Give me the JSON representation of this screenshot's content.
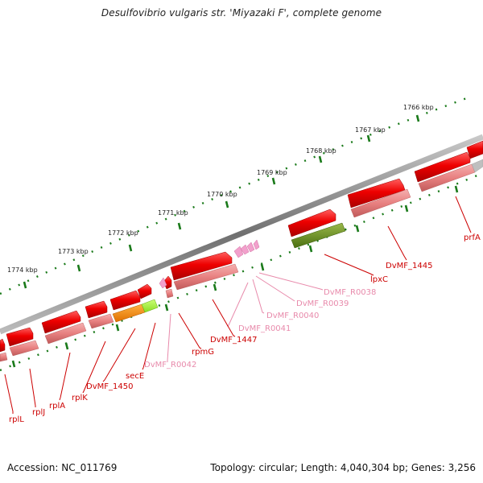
{
  "title": "Desulfovibrio vulgaris str. 'Miyazaki F', complete genome",
  "footer": {
    "accession": "Accession: NC_011769",
    "summary": "Topology: circular; Length: 4,040,304 bp; Genes: 3,256"
  },
  "scale_labels": [
    "1766 kbp",
    "1767 kbp",
    "1768 kbp",
    "1769 kbp",
    "1770 kbp",
    "1771 kbp",
    "1772 kbp",
    "1773 kbp",
    "1774 kbp"
  ],
  "gene_labels": [
    {
      "text": "prfA",
      "color": "#cc0000"
    },
    {
      "text": "DvMF_1445",
      "color": "#cc0000"
    },
    {
      "text": "lpxC",
      "color": "#cc0000"
    },
    {
      "text": "DvMF_R0038",
      "color": "#e88aab"
    },
    {
      "text": "DvMF_R0039",
      "color": "#e88aab"
    },
    {
      "text": "DvMF_R0040",
      "color": "#e88aab"
    },
    {
      "text": "DvMF_R0041",
      "color": "#e88aab"
    },
    {
      "text": "DvMF_1447",
      "color": "#cc0000"
    },
    {
      "text": "rpmG",
      "color": "#cc0000"
    },
    {
      "text": "DvMF_R0042",
      "color": "#e88aab"
    },
    {
      "text": "secE",
      "color": "#cc0000"
    },
    {
      "text": "DvMF_1450",
      "color": "#cc0000"
    },
    {
      "text": "rplK",
      "color": "#cc0000"
    },
    {
      "text": "rplA",
      "color": "#cc0000"
    },
    {
      "text": "rplJ",
      "color": "#cc0000"
    },
    {
      "text": "rplL",
      "color": "#cc0000"
    }
  ],
  "colors": {
    "forward_gene": "#ee0000",
    "cds": "#e87878",
    "trna": "#f2a0cc",
    "backbone": "#777777",
    "ticks": "#1a7a1a",
    "lpxC_feature": "#5a8a1e",
    "rplA_feature": "#ff8800",
    "secE_feature": "#99ee33"
  }
}
